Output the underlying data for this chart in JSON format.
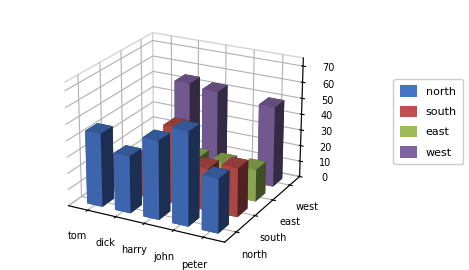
{
  "persons": [
    "tom",
    "dick",
    "harry",
    "john",
    "peter"
  ],
  "series": [
    "north",
    "south",
    "east",
    "west"
  ],
  "values": [
    [
      45,
      20,
      0,
      0
    ],
    [
      35,
      25,
      0,
      55
    ],
    [
      48,
      47,
      20,
      53
    ],
    [
      57,
      26,
      20,
      0
    ],
    [
      33,
      30,
      20,
      50
    ]
  ],
  "colors": [
    "#4472C4",
    "#C0504D",
    "#9BBB59",
    "#8064A2"
  ],
  "legend_labels": [
    "north",
    "south",
    "east",
    "west"
  ],
  "zticks": [
    0,
    10,
    20,
    30,
    40,
    50,
    60,
    70
  ],
  "zlim": [
    0,
    75
  ],
  "background_color": "#FFFFFF",
  "bar_width": 0.55,
  "bar_depth": 0.55,
  "elev": 22,
  "azim": -62
}
